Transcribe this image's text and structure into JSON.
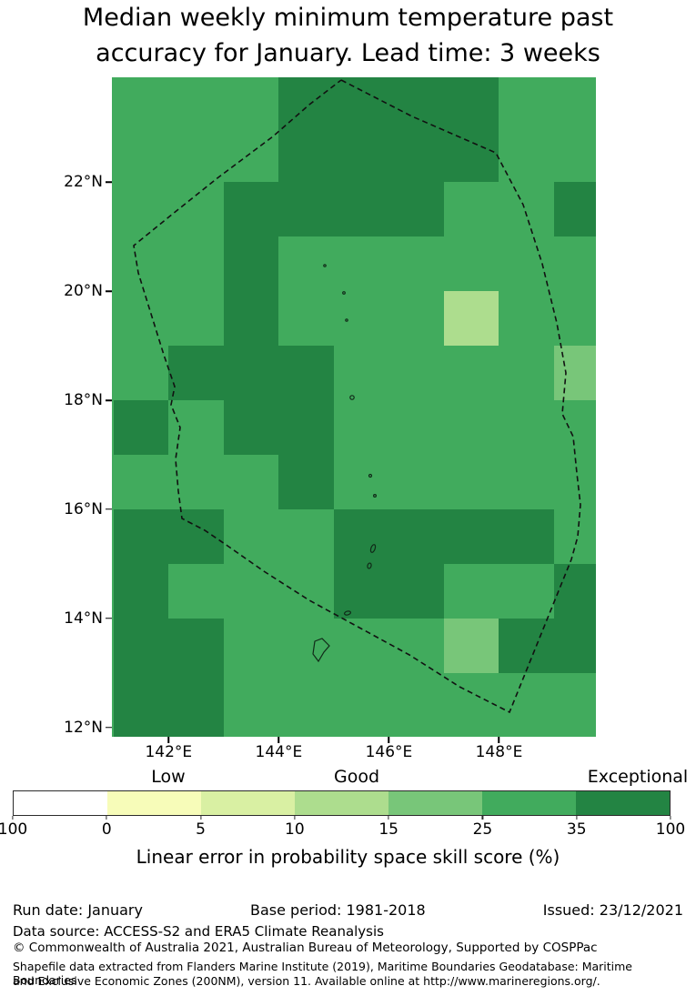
{
  "title": {
    "line1": "Median weekly minimum temperature past",
    "line2": "accuracy for January. Lead time: 3 weeks"
  },
  "chart_data": {
    "type": "heatmap",
    "title": "Median weekly minimum temperature past accuracy for January. Lead time: 3 weeks",
    "xticks": [
      {
        "label": "142°E",
        "lon": 142
      },
      {
        "label": "144°E",
        "lon": 144
      },
      {
        "label": "146°E",
        "lon": 146
      },
      {
        "label": "148°E",
        "lon": 148
      }
    ],
    "yticks": [
      {
        "label": "12°N",
        "lat": 12
      },
      {
        "label": "14°N",
        "lat": 14
      },
      {
        "label": "16°N",
        "lat": 16
      },
      {
        "label": "18°N",
        "lat": 18
      },
      {
        "label": "20°N",
        "lat": 20
      },
      {
        "label": "22°N",
        "lat": 22
      }
    ],
    "lon_range": [
      140.97,
      149.76
    ],
    "lat_range": [
      11.83,
      23.92
    ],
    "cell_size_deg": 1,
    "grid_origin": {
      "lon_west": 141,
      "lat_north": 24
    },
    "palette": [
      "#ffffff",
      "#f7fcb9",
      "#d9f0a3",
      "#addd8e",
      "#78c679",
      "#41ab5d",
      "#238443"
    ],
    "palette_bins": [
      "masked",
      "0-5",
      "5-10",
      "10-15",
      "15-25",
      "25-35",
      "35-100"
    ],
    "grid": [
      [
        5,
        5,
        5,
        6,
        6,
        6,
        6,
        5,
        5
      ],
      [
        5,
        5,
        5,
        6,
        6,
        6,
        6,
        5,
        5
      ],
      [
        5,
        5,
        6,
        6,
        6,
        6,
        5,
        5,
        6
      ],
      [
        5,
        5,
        6,
        5,
        5,
        5,
        5,
        5,
        5
      ],
      [
        5,
        5,
        6,
        5,
        5,
        5,
        3,
        5,
        5
      ],
      [
        5,
        6,
        6,
        6,
        5,
        5,
        5,
        5,
        4
      ],
      [
        6,
        5,
        6,
        6,
        5,
        5,
        5,
        5,
        5
      ],
      [
        5,
        5,
        5,
        6,
        5,
        5,
        5,
        5,
        5
      ],
      [
        6,
        6,
        5,
        5,
        6,
        6,
        6,
        6,
        5
      ],
      [
        6,
        5,
        5,
        5,
        6,
        6,
        5,
        5,
        6
      ],
      [
        6,
        6,
        5,
        5,
        5,
        5,
        4,
        6,
        6
      ],
      [
        6,
        6,
        5,
        5,
        5,
        5,
        5,
        5,
        5
      ]
    ],
    "grid_rows_lat_north_to_south": [
      24,
      23,
      22,
      21,
      20,
      19,
      18,
      17,
      16,
      15,
      14,
      13
    ],
    "legend_position": "bottom"
  },
  "colorbar": {
    "quality_labels": [
      "Low",
      "Good",
      "Exceptional"
    ],
    "ticks": [
      "100",
      "0",
      "5",
      "10",
      "15",
      "25",
      "35",
      "100"
    ],
    "segments": [
      "#ffffff",
      "#f7fcb9",
      "#d9f0a3",
      "#addd8e",
      "#78c679",
      "#41ab5d",
      "#238443"
    ],
    "axis_label": "Linear error in probability space skill score (%)"
  },
  "footer": {
    "run_date": "Run date: January",
    "base_period": "Base period: 1981-2018",
    "issued": "Issued: 23/12/2021",
    "data_source": "Data source: ACCESS-S2 and ERA5 Climate Reanalysis",
    "copyright": "© Commonwealth of Australia 2021, Australian Bureau of Meteorology, Supported by COSPPac",
    "shapefile_line1": "Shapefile data extracted from Flanders Marine Institute (2019), Maritime Boundaries Geodatabase: Maritime Boundaries",
    "shapefile_line2": "and Exclusive Economic Zones (200NM), version 11. Available online at http://www.marineregions.org/."
  }
}
